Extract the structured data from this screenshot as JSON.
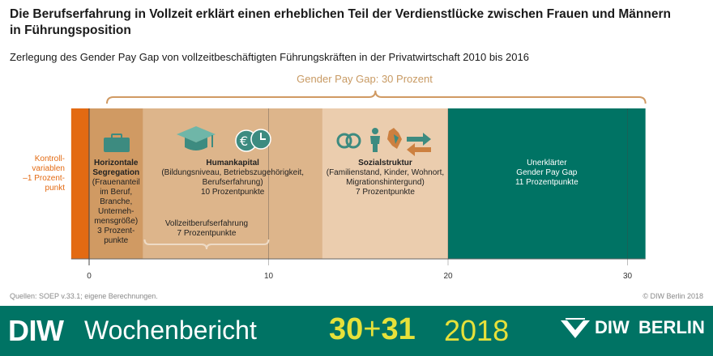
{
  "title": "Die Berufserfahrung in Vollzeit erklärt einen erheblichen Teil der Verdienstlücke zwischen Frauen und Männern in Führungsposition",
  "subtitle": "Zerlegung des Gender Pay Gap von vollzeitbeschäftigten Führungskräften in der Privatwirtschaft 2010 bis 2016",
  "chart_data": {
    "type": "bar",
    "orientation": "horizontal-stacked",
    "xlim": [
      -1,
      31
    ],
    "ticks": [
      0,
      10,
      20,
      30
    ],
    "total_label": "Gender Pay Gap: 30 Prozent",
    "segments": [
      {
        "start": -1,
        "end": 0,
        "value": -1,
        "color": "#e36a12",
        "label": [
          "Kontroll-",
          "variablen",
          "–1 Prozent-",
          "punkt"
        ]
      },
      {
        "start": 0,
        "end": 3,
        "value": 3,
        "color": "#d09a63",
        "label_bold": [
          "Horizontale",
          "Segregation"
        ],
        "label": [
          "(Frauenanteil",
          "im Beruf,",
          "Branche,",
          "Unterneh-",
          "mensgröße)",
          "3 Prozent-",
          "punkte"
        ],
        "icons": [
          "briefcase-icon"
        ]
      },
      {
        "start": 3,
        "end": 13,
        "value": 10,
        "color": "#ddb58b",
        "label_bold": [
          "Humankapital"
        ],
        "label": [
          "(Bildungsniveau, Betriebszugehörigkeit,",
          "Berufserfahrung)",
          "10 Prozentpunkte"
        ],
        "icons": [
          "graduation-cap-icon",
          "euro-clock-icon"
        ]
      },
      {
        "start": 13,
        "end": 20,
        "value": 7,
        "color": "#ebcdae",
        "label_bold": [
          "Sozialstruktur"
        ],
        "label": [
          "(Familienstand, Kinder, Wohnort,",
          "Migrationshintergund)",
          "7 Prozentpunkte"
        ],
        "icons": [
          "rings-icon",
          "person-icon",
          "map-icon",
          "arrows-icon"
        ]
      },
      {
        "start": 20,
        "end": 31,
        "value": 11,
        "color": "#007364",
        "label": [
          "Unerklärter",
          "Gender Pay Gap",
          "11 Prozentpunkte"
        ]
      }
    ],
    "sub_annotation": {
      "start": 3,
      "end": 10,
      "label": [
        "Vollzeitberufserfahrung",
        "7 Prozentpunkte"
      ]
    }
  },
  "source": "Quellen: SOEP v.33.1; eigene Berechnungen.",
  "copyright": "© DIW Berlin 2018",
  "footer": {
    "diw": "DIW",
    "wochenbericht": "Wochenbericht",
    "issue_a": "30",
    "issue_plus": "+",
    "issue_b": "31",
    "year": "2018",
    "logo_diw": "DIW",
    "logo_berlin": "BERLIN"
  }
}
